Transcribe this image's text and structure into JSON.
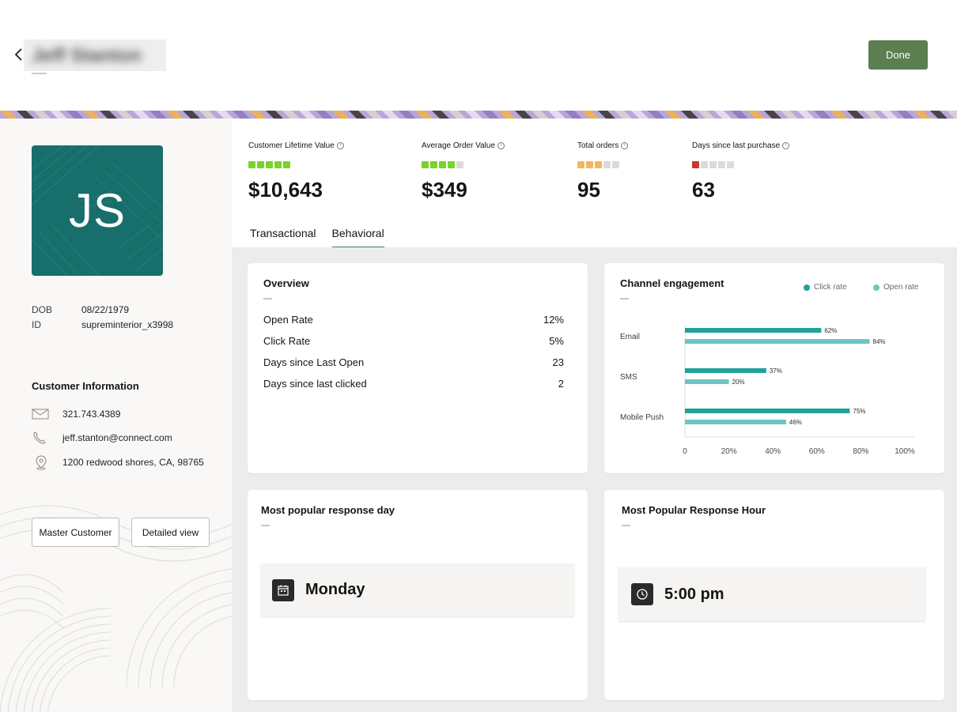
{
  "header": {
    "customer_name": "Jeff Stanton",
    "done_label": "Done"
  },
  "profile": {
    "initials": "JS",
    "dob_label": "DOB",
    "dob_value": "08/22/1979",
    "id_label": "ID",
    "id_value": "supreminterior_x3998",
    "info_title": "Customer Information",
    "phone": "321.743.4389",
    "email": "jeff.stanton@connect.com",
    "address": "1200 redwood shores, CA, 98765",
    "master_customer_label": "Master Customer",
    "detailed_view_label": "Detailed view"
  },
  "metrics": [
    {
      "label": "Customer Lifetime Value",
      "value": "$10,643",
      "rating": 5,
      "color": "#7bd22a"
    },
    {
      "label": "Average Order Value",
      "value": "$349",
      "rating": 4,
      "color": "#7bd22a"
    },
    {
      "label": "Total orders",
      "value": "95",
      "rating": 3,
      "color": "#f0b760"
    },
    {
      "label": "Days since last purchase",
      "value": "63",
      "rating": 1,
      "color": "#c4392c"
    }
  ],
  "tabs": [
    {
      "label": "Transactional"
    },
    {
      "label": "Behavioral"
    }
  ],
  "overview": {
    "title": "Overview",
    "rows": [
      {
        "label": "Open Rate",
        "value": "12%"
      },
      {
        "label": "Click Rate",
        "value": "5%"
      },
      {
        "label": "Days since Last Open",
        "value": "23"
      },
      {
        "label": "Days since last clicked",
        "value": "2"
      }
    ]
  },
  "channel": {
    "title": "Channel engagement",
    "legend_click": "Click rate",
    "legend_open": "Open rate"
  },
  "chart_data": {
    "type": "bar",
    "orientation": "horizontal",
    "categories": [
      "Email",
      "SMS",
      "Mobile Push"
    ],
    "series": [
      {
        "name": "Click rate",
        "values": [
          62,
          37,
          75
        ],
        "color": "#20a39b"
      },
      {
        "name": "Open rate",
        "values": [
          84,
          20,
          46
        ],
        "color": "#6cc6bf"
      }
    ],
    "data_labels": {
      "Click rate": [
        "62%",
        "37%",
        "75%"
      ],
      "Open rate": [
        "84%",
        "20%",
        "46%"
      ]
    },
    "xlim": [
      0,
      100
    ],
    "xticks": [
      "0",
      "20%",
      "40%",
      "60%",
      "80%",
      "100%"
    ],
    "grid": false,
    "legend": "top-right"
  },
  "response_day": {
    "title": "Most popular response day",
    "value": "Monday"
  },
  "response_hour": {
    "title": "Most Popular Response Hour",
    "value": "5:00 pm"
  },
  "icons": {
    "back": "chevron-left-icon",
    "email": "envelope-icon",
    "phone": "phone-icon",
    "location": "location-pin-icon",
    "calendar": "calendar-icon",
    "clock": "clock-icon",
    "info": "info-icon"
  }
}
